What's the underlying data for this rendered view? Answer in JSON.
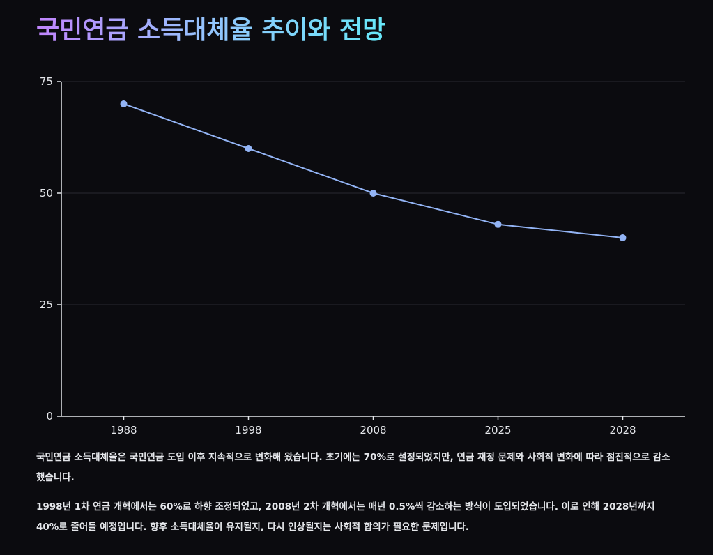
{
  "title": "국민연금 소득대체율 추이와 전망",
  "chart_data": {
    "type": "line",
    "title": "국민연금 소득대체율 추이와 전망",
    "xlabel": "",
    "ylabel": "",
    "categories": [
      "1988",
      "1998",
      "2008",
      "2025",
      "2028"
    ],
    "series": [
      {
        "values": [
          70,
          60,
          50,
          43,
          40
        ]
      }
    ],
    "ylim": [
      0,
      75
    ],
    "yticks": [
      0,
      25,
      50,
      75
    ],
    "grid": true,
    "legend": "none",
    "line_color": "#93b4f5",
    "gridline_color": "#2a2a30",
    "axis_color": "#e5e7eb"
  },
  "description": {
    "paragraph1": "국민연금 소득대체율은 국민연금 도입 이후 지속적으로 변화해 왔습니다. 초기에는 70%로 설정되었지만, 연금 재정 문제와 사회적 변화에 따라 점진적으로 감소했습니다.",
    "paragraph2": "1998년 1차 연금 개혁에서는 60%로 하향 조정되었고, 2008년 2차 개혁에서는 매년 0.5%씩 감소하는 방식이 도입되었습니다. 이로 인해 2028년까지 40%로 줄어들 예정입니다. 향후 소득대체율이 유지될지, 다시 인상될지는 사회적 합의가 필요한 문제입니다."
  }
}
